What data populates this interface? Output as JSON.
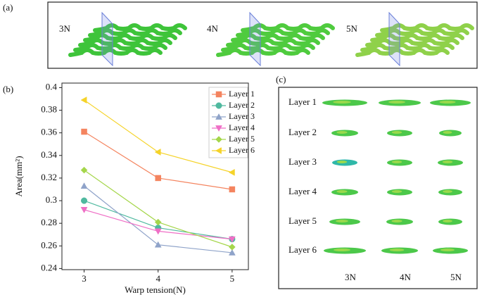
{
  "panels": {
    "a": "(a)",
    "b": "(b)",
    "c": "(c)"
  },
  "fabrics": [
    "3N",
    "4N",
    "5N"
  ],
  "sections": {
    "rows": [
      "Layer 1",
      "Layer 2",
      "Layer 3",
      "Layer 4",
      "Layer 5",
      "Layer 6"
    ],
    "columns": [
      "3N",
      "4N",
      "5N"
    ]
  },
  "chart_data": {
    "type": "line",
    "xlabel": "Warp tension(N)",
    "ylabel": "Area(mm²)",
    "x": [
      3,
      4,
      5
    ],
    "xlim": [
      2.7,
      5.22
    ],
    "xticks": [
      3,
      4,
      5
    ],
    "ylim": [
      0.239,
      0.404
    ],
    "yticks": [
      0.24,
      0.26,
      0.28,
      0.3,
      0.32,
      0.34,
      0.36,
      0.38,
      0.4
    ],
    "legend": "upper right",
    "series": [
      {
        "name": "Layer 1",
        "color": "#f4845f",
        "marker": "square",
        "values": [
          0.361,
          0.32,
          0.31
        ]
      },
      {
        "name": "Layer 2",
        "color": "#4fb99f",
        "marker": "circle",
        "values": [
          0.3,
          0.276,
          0.266
        ]
      },
      {
        "name": "Layer 3",
        "color": "#8fa3c9",
        "marker": "triangle-up",
        "values": [
          0.313,
          0.261,
          0.254
        ]
      },
      {
        "name": "Layer 4",
        "color": "#ef6fc6",
        "marker": "triangle-down",
        "values": [
          0.292,
          0.273,
          0.266
        ]
      },
      {
        "name": "Layer 5",
        "color": "#a5d64b",
        "marker": "diamond",
        "values": [
          0.327,
          0.281,
          0.259
        ]
      },
      {
        "name": "Layer 6",
        "color": "#f5d329",
        "marker": "triangle-left",
        "values": [
          0.389,
          0.343,
          0.325
        ]
      }
    ]
  }
}
